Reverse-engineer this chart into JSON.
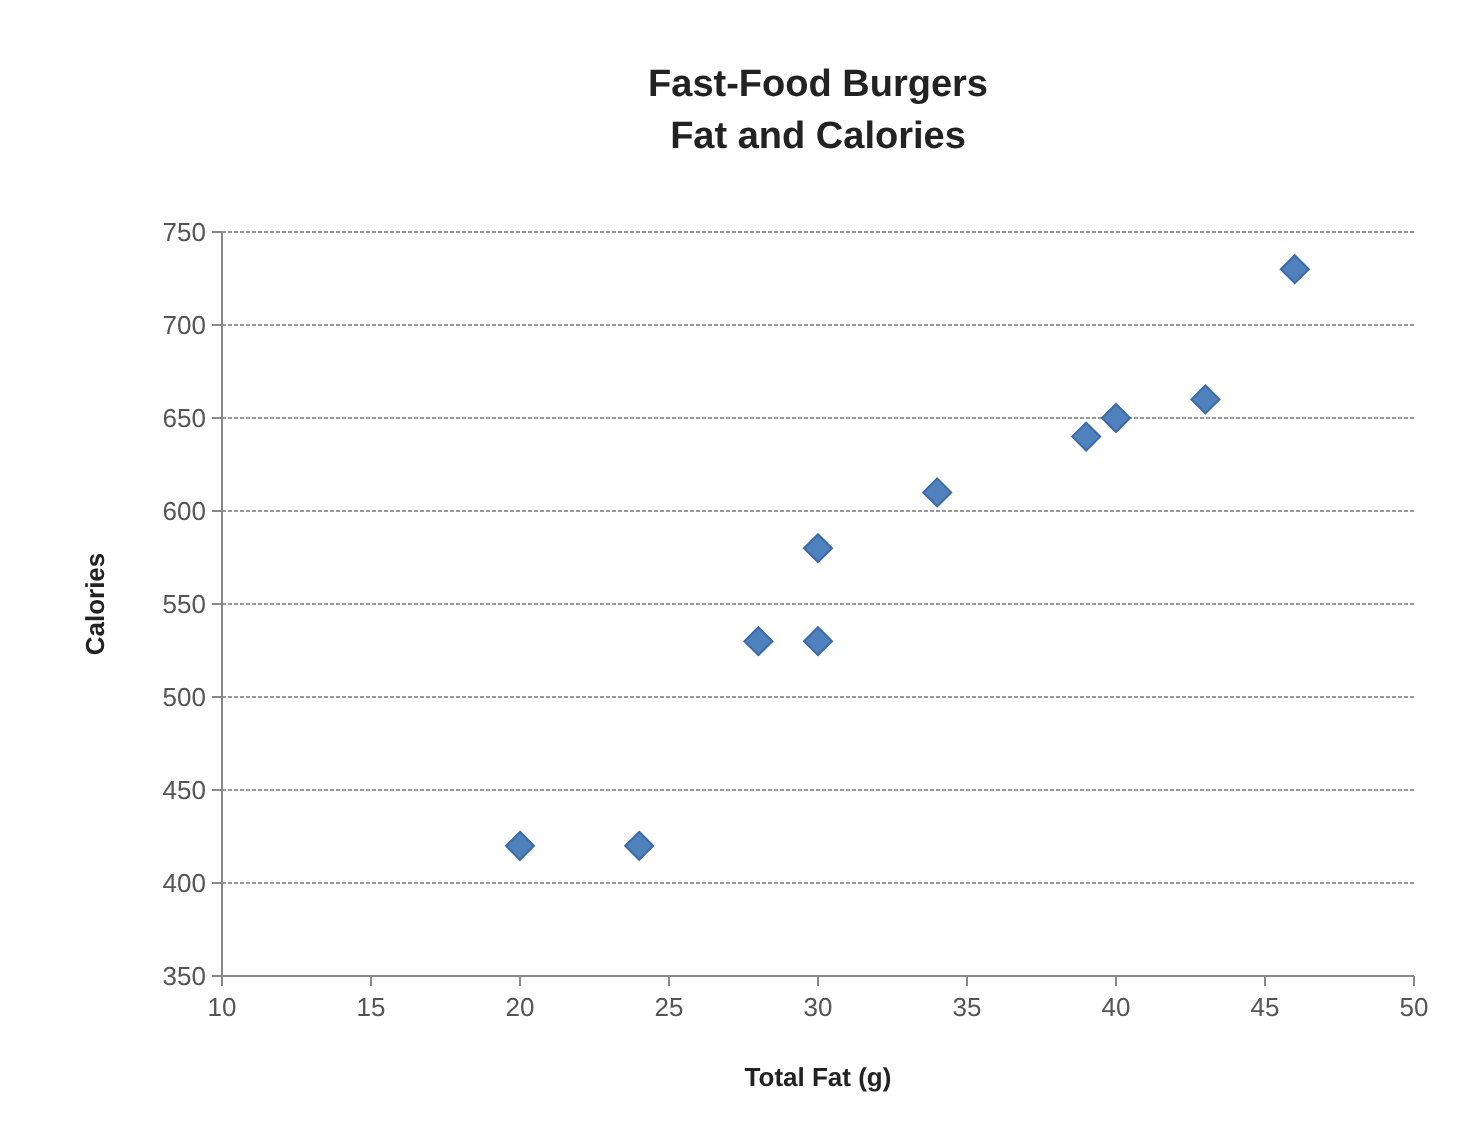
{
  "chart_data": {
    "type": "scatter",
    "title": "Fast-Food Burgers\nFat and Calories",
    "xlabel": "Total Fat (g)",
    "ylabel": "Calories",
    "x": [
      20,
      24,
      28,
      30,
      30,
      34,
      39,
      40,
      43,
      46
    ],
    "series": [
      {
        "color": "#4f81bd",
        "values": [
          420,
          420,
          530,
          530,
          580,
          610,
          640,
          650,
          660,
          730
        ]
      }
    ],
    "xlim": [
      10,
      50
    ],
    "xticks": [
      10,
      15,
      20,
      25,
      30,
      35,
      40,
      45,
      50
    ],
    "ylim": [
      350,
      750
    ],
    "yticks": [
      350,
      400,
      450,
      500,
      550,
      600,
      650,
      700,
      750
    ],
    "grid": "y",
    "marker": "diamond"
  }
}
